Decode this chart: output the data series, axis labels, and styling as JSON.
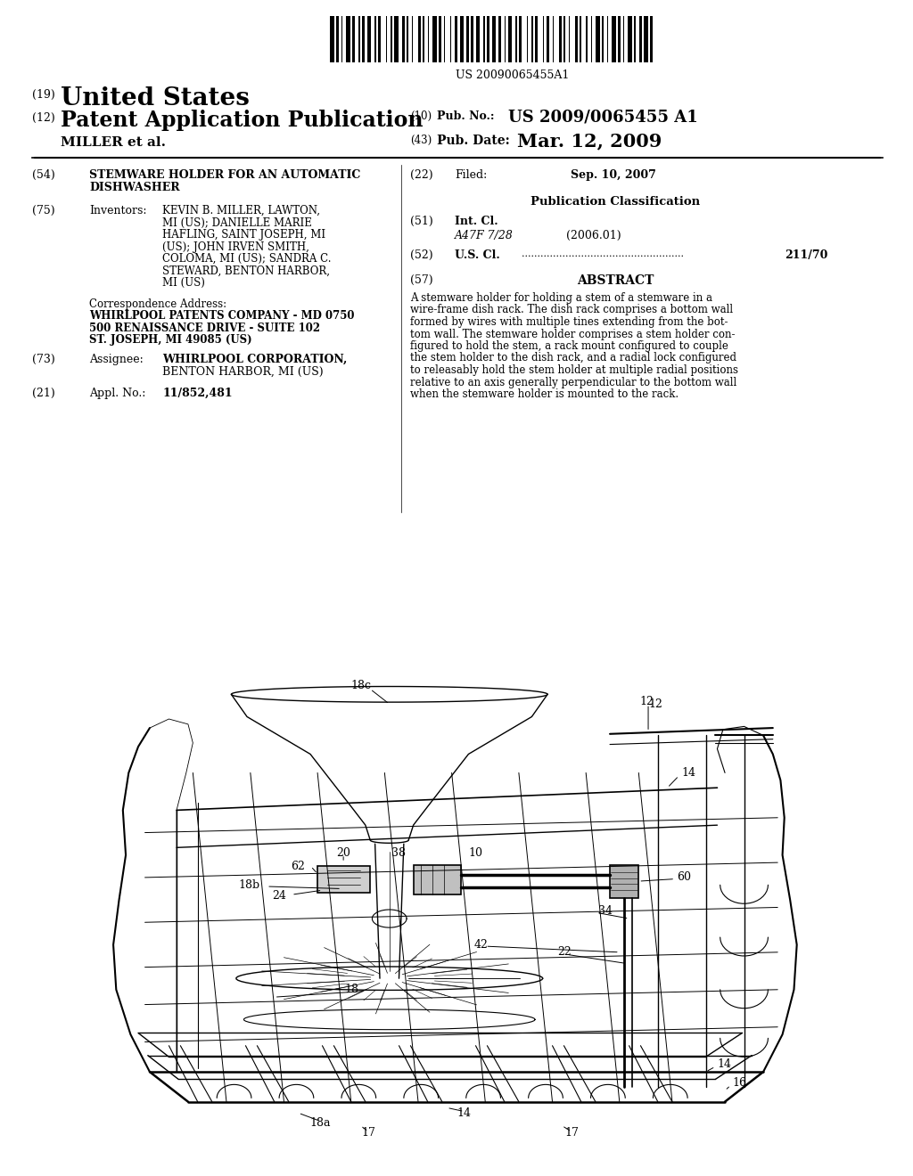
{
  "background_color": "#ffffff",
  "barcode_text": "US 20090065455A1",
  "title_line1": "STEMWARE HOLDER FOR AN AUTOMATIC",
  "title_line2": "DISHWASHER",
  "inventors_lines": [
    "KEVIN B. MILLER, LAWTON,",
    "MI (US); DANIELLE MARIE",
    "HAFLING, SAINT JOSEPH, MI",
    "(US); JOHN IRVEN SMITH,",
    "COLOMA, MI (US); SANDRA C.",
    "STEWARD, BENTON HARBOR,",
    "MI (US)"
  ],
  "corr_label": "Correspondence Address:",
  "corr_lines": [
    "WHIRLPOOL PATENTS COMPANY - MD 0750",
    "500 RENAISSANCE DRIVE - SUITE 102",
    "ST. JOSEPH, MI 49085 (US)"
  ],
  "assignee_line1": "WHIRLPOOL CORPORATION,",
  "assignee_line2": "BENTON HARBOR, MI (US)",
  "appl_no": "11/852,481",
  "filed_value": "Sep. 10, 2007",
  "int_cl_class": "A47F 7/28",
  "int_cl_year": "(2006.01)",
  "us_cl_value": "211/70",
  "abstract_lines": [
    "A stemware holder for holding a stem of a stemware in a",
    "wire-frame dish rack. The dish rack comprises a bottom wall",
    "formed by wires with multiple tines extending from the bot-",
    "tom wall. The stemware holder comprises a stem holder con-",
    "figured to hold the stem, a rack mount configured to couple",
    "the stem holder to the dish rack, and a radial lock configured",
    "to releasably hold the stem holder at multiple radial positions",
    "relative to an axis generally perpendicular to the bottom wall",
    "when the stemware holder is mounted to the rack."
  ]
}
